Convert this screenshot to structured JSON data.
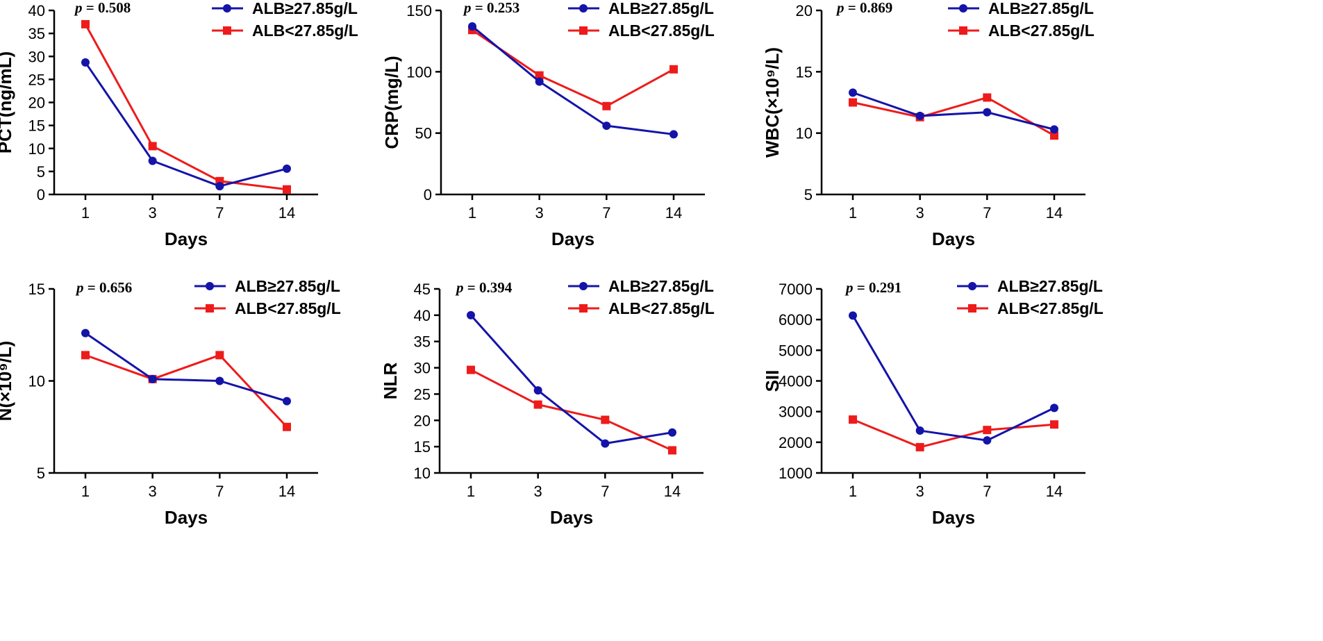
{
  "figure_title": "",
  "colors": {
    "high": "#1414a8",
    "low": "#ee1b1b",
    "axis": "#000000"
  },
  "legend": {
    "high_label": "ALB≥27.85g/L",
    "low_label": "ALB<27.85g/L"
  },
  "chart_data": [
    {
      "type": "line",
      "ylabel": "PCT(ng/mL)",
      "xlabel": "Days",
      "categories": [
        "1",
        "3",
        "7",
        "14"
      ],
      "ylim": [
        0,
        40
      ],
      "yticks": [
        0,
        5,
        10,
        15,
        20,
        25,
        30,
        35,
        40
      ],
      "p_symbol": "p",
      "p_text": " = 0.508",
      "series": [
        {
          "name": "ALB≥27.85g/L",
          "marker": "circle",
          "values": [
            28.7,
            7.3,
            1.8,
            5.6
          ]
        },
        {
          "name": "ALB<27.85g/L",
          "marker": "square",
          "values": [
            37.0,
            10.5,
            2.9,
            1.1
          ]
        }
      ]
    },
    {
      "type": "line",
      "ylabel": "CRP(mg/L)",
      "xlabel": "Days",
      "categories": [
        "1",
        "3",
        "7",
        "14"
      ],
      "ylim": [
        0,
        150
      ],
      "yticks": [
        0,
        50,
        100,
        150
      ],
      "p_symbol": "p",
      "p_text": " = 0.253",
      "series": [
        {
          "name": "ALB≥27.85g/L",
          "marker": "circle",
          "values": [
            137,
            92,
            56,
            49
          ]
        },
        {
          "name": "ALB<27.85g/L",
          "marker": "square",
          "values": [
            134,
            97,
            72,
            102
          ]
        }
      ]
    },
    {
      "type": "line",
      "ylabel": "WBC(×10⁹/L)",
      "xlabel": "Days",
      "categories": [
        "1",
        "3",
        "7",
        "14"
      ],
      "ylim": [
        5,
        20
      ],
      "yticks": [
        5,
        10,
        15,
        20
      ],
      "p_symbol": "p",
      "p_text": " = 0.869",
      "series": [
        {
          "name": "ALB≥27.85g/L",
          "marker": "circle",
          "values": [
            13.3,
            11.4,
            11.7,
            10.3
          ]
        },
        {
          "name": "ALB<27.85g/L",
          "marker": "square",
          "values": [
            12.5,
            11.3,
            12.9,
            9.8
          ]
        }
      ]
    },
    {
      "type": "line",
      "ylabel": "N(×10⁹/L)",
      "xlabel": "Days",
      "categories": [
        "1",
        "3",
        "7",
        "14"
      ],
      "ylim": [
        5,
        15
      ],
      "yticks": [
        5,
        10,
        15
      ],
      "p_symbol": "p",
      "p_text": " = 0.656",
      "series": [
        {
          "name": "ALB≥27.85g/L",
          "marker": "circle",
          "values": [
            12.6,
            10.1,
            10.0,
            8.9
          ]
        },
        {
          "name": "ALB<27.85g/L",
          "marker": "square",
          "values": [
            11.4,
            10.1,
            11.4,
            7.5
          ]
        }
      ]
    },
    {
      "type": "line",
      "ylabel": "NLR",
      "xlabel": "Days",
      "categories": [
        "1",
        "3",
        "7",
        "14"
      ],
      "ylim": [
        10,
        45
      ],
      "yticks": [
        10,
        15,
        20,
        25,
        30,
        35,
        40,
        45
      ],
      "p_symbol": "p",
      "p_text": " = 0.394",
      "series": [
        {
          "name": "ALB≥27.85g/L",
          "marker": "circle",
          "values": [
            40.0,
            25.7,
            15.6,
            17.7
          ]
        },
        {
          "name": "ALB<27.85g/L",
          "marker": "square",
          "values": [
            29.6,
            23.0,
            20.1,
            14.3
          ]
        }
      ]
    },
    {
      "type": "line",
      "ylabel": "SII",
      "xlabel": "Days",
      "categories": [
        "1",
        "3",
        "7",
        "14"
      ],
      "ylim": [
        1000,
        7000
      ],
      "yticks": [
        1000,
        2000,
        3000,
        4000,
        5000,
        6000,
        7000
      ],
      "p_symbol": "p",
      "p_text": " = 0.291",
      "series": [
        {
          "name": "ALB≥27.85g/L",
          "marker": "circle",
          "values": [
            6130,
            2380,
            2060,
            3120
          ]
        },
        {
          "name": "ALB<27.85g/L",
          "marker": "square",
          "values": [
            2740,
            1840,
            2400,
            2580
          ]
        }
      ]
    }
  ]
}
